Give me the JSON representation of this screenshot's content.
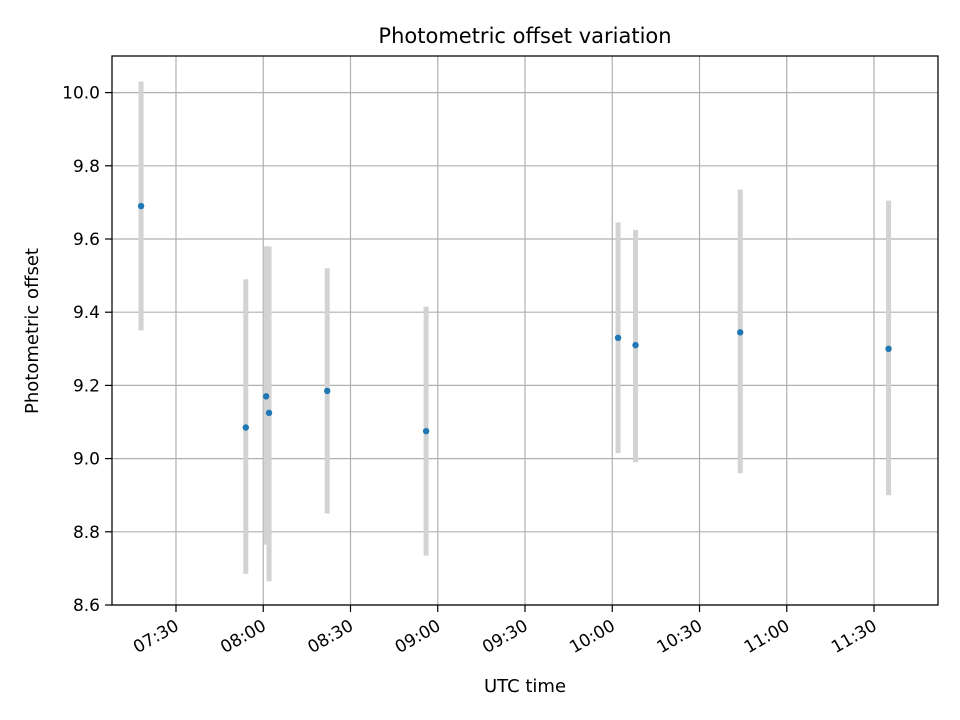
{
  "chart_data": {
    "type": "scatter",
    "title": "Photometric offset variation",
    "xlabel": "UTC time",
    "ylabel": "Photometric offset",
    "x_tick_labels": [
      "07:30",
      "08:00",
      "08:30",
      "09:00",
      "09:30",
      "10:00",
      "10:30",
      "11:00",
      "11:30"
    ],
    "y_tick_labels": [
      "8.6",
      "8.8",
      "9.0",
      "9.2",
      "9.4",
      "9.6",
      "9.8",
      "10.0"
    ],
    "xlim": [
      "07:08",
      "11:52"
    ],
    "ylim": [
      8.6,
      10.1
    ],
    "grid": true,
    "points": [
      {
        "x": "07:18",
        "y": 9.69,
        "ylow": 9.35,
        "yhigh": 10.03
      },
      {
        "x": "07:54",
        "y": 9.085,
        "ylow": 8.685,
        "yhigh": 9.49
      },
      {
        "x": "08:01",
        "y": 9.17,
        "ylow": 8.765,
        "yhigh": 9.58
      },
      {
        "x": "08:02",
        "y": 9.125,
        "ylow": 8.665,
        "yhigh": 9.58
      },
      {
        "x": "08:22",
        "y": 9.185,
        "ylow": 8.85,
        "yhigh": 9.52
      },
      {
        "x": "08:56",
        "y": 9.075,
        "ylow": 8.735,
        "yhigh": 9.415
      },
      {
        "x": "10:02",
        "y": 9.33,
        "ylow": 9.015,
        "yhigh": 9.645
      },
      {
        "x": "10:08",
        "y": 9.31,
        "ylow": 8.99,
        "yhigh": 9.625
      },
      {
        "x": "10:44",
        "y": 9.345,
        "ylow": 8.96,
        "yhigh": 9.735
      },
      {
        "x": "11:35",
        "y": 9.3,
        "ylow": 8.9,
        "yhigh": 9.705
      }
    ],
    "colors": {
      "marker": "#1f77b4",
      "errorbar": "#d3d3d3",
      "grid": "#b0b0b0",
      "axes": "#000000"
    }
  }
}
